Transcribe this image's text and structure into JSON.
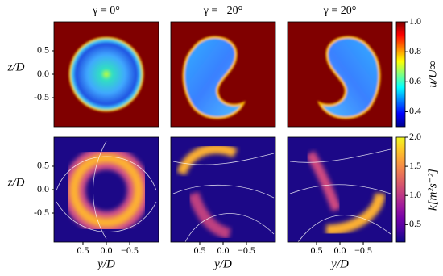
{
  "chart_data": [
    {
      "type": "heatmap",
      "title": "γ = 0°",
      "ylabel": "z/D",
      "xlim": [
        1.12,
        -1.12
      ],
      "ylim": [
        -1.12,
        1.12
      ],
      "yticks": [
        -0.5,
        {
          "value": 0,
          "label": "0.0"
        },
        0.5
      ]
    },
    {
      "type": "heatmap",
      "title": "γ = −20°",
      "xlim": [
        1.12,
        -1.12
      ],
      "ylim": [
        -1.12,
        1.12
      ]
    },
    {
      "type": "heatmap",
      "title": "γ = 20°",
      "xlim": [
        1.12,
        -1.12
      ],
      "ylim": [
        -1.12,
        1.12
      ]
    },
    {
      "type": "heatmap",
      "ylabel": "z/D",
      "xlabel": "y/D",
      "xlim": [
        1.12,
        -1.12
      ],
      "ylim": [
        -1.12,
        1.12
      ],
      "yticks": [
        -0.5,
        {
          "value": 0,
          "label": "0.0"
        },
        0.5
      ],
      "xticks": [
        0.5,
        {
          "value": 0,
          "label": "0.0"
        },
        {
          "value": -0.5,
          "label": "−0.5"
        }
      ]
    },
    {
      "type": "heatmap",
      "xlabel": "y/D",
      "xlim": [
        1.12,
        -1.12
      ],
      "ylim": [
        -1.12,
        1.12
      ],
      "xticks": [
        0.5,
        {
          "value": 0,
          "label": "0.0"
        },
        {
          "value": -0.5,
          "label": "−0.5"
        }
      ]
    },
    {
      "type": "heatmap",
      "xlabel": "y/D",
      "xlim": [
        1.12,
        -1.12
      ],
      "ylim": [
        -1.12,
        1.12
      ],
      "xticks": [
        0.5,
        {
          "value": 0,
          "label": "0.0"
        },
        {
          "value": -0.5,
          "label": "−0.5"
        }
      ]
    },
    {
      "type": "colorbar",
      "label": "ū/U∞",
      "ylim": [
        0.3,
        1.0
      ],
      "yticks": [
        0.4,
        0.6,
        0.8,
        {
          "value": 1,
          "label": "1.0"
        }
      ],
      "colors": [
        "#00008f",
        "#0000ff",
        "#0080ff",
        "#00ffff",
        "#80ff80",
        "#ffff00",
        "#ff8000",
        "#ff0000",
        "#800000"
      ]
    },
    {
      "type": "colorbar",
      "label": "k[m²s⁻²]",
      "ylim": [
        0.2,
        2.0
      ],
      "yticks": [
        0.5,
        {
          "value": 1,
          "label": "1.0"
        },
        1.5,
        {
          "value": 2,
          "label": "2.0"
        }
      ],
      "colors": [
        "#0d0887",
        "#46039f",
        "#7201a8",
        "#9c179e",
        "#bd3786",
        "#d8576b",
        "#ed7953",
        "#fb9f3a",
        "#fdca26",
        "#f0f921"
      ]
    }
  ]
}
